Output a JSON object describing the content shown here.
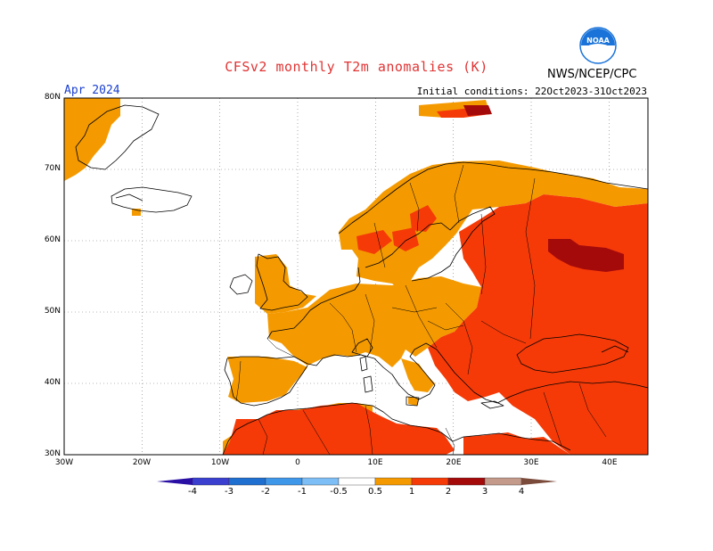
{
  "header": {
    "title": "CFSv2 monthly T2m anomalies (K)",
    "agency": "NWS/NCEP/CPC",
    "logo_text": "NOAA",
    "valid_month": "Apr 2024",
    "initial_conditions": "Initial conditions: 22Oct2023-31Oct2023"
  },
  "map": {
    "region": "Europe",
    "lon_range": [
      -30,
      45
    ],
    "lat_range": [
      30,
      80
    ],
    "grid": true,
    "lat_ticks": [
      "80N",
      "70N",
      "60N",
      "50N",
      "40N",
      "30N"
    ],
    "lon_ticks": [
      "30W",
      "20W",
      "10W",
      "0",
      "10E",
      "20E",
      "30E",
      "40E"
    ],
    "ocean_color": "#ffffff",
    "coast_color": "#000000"
  },
  "colorbar": {
    "boundaries": [
      "-4",
      "-3",
      "-2",
      "-1",
      "-0.5",
      "0.5",
      "1",
      "2",
      "3",
      "4"
    ],
    "colors": {
      "lt_-4": "#2a0fa5",
      "-4_-3": "#3a3fd0",
      "-3_-2": "#1f6fd0",
      "-2_-1": "#3f97ea",
      "-1_-0.5": "#7ebef6",
      "-0.5_0.5": "#ffffff",
      "0.5_1": "#f49a00",
      "1_2": "#f53a08",
      "2_3": "#a50a0a",
      "3_4": "#c49a8a",
      "gt_4": "#7a4a3a"
    }
  },
  "anomaly_zones": [
    {
      "category": "0.5_1",
      "area": "Greenland east coast"
    },
    {
      "category": "0.5_1",
      "area": "Scandinavia and Finland"
    },
    {
      "category": "0.5_1",
      "area": "Western and Central Europe"
    },
    {
      "category": "0.5_1",
      "area": "Iberia and Italy"
    },
    {
      "category": "1_2",
      "area": "North Africa"
    },
    {
      "category": "1_2",
      "area": "Eastern Europe and western Russia"
    },
    {
      "category": "1_2",
      "area": "Balkans, Greece and Turkey"
    },
    {
      "category": "2_3",
      "area": "Central Russia near 35E-40E, 57N-60N"
    }
  ]
}
